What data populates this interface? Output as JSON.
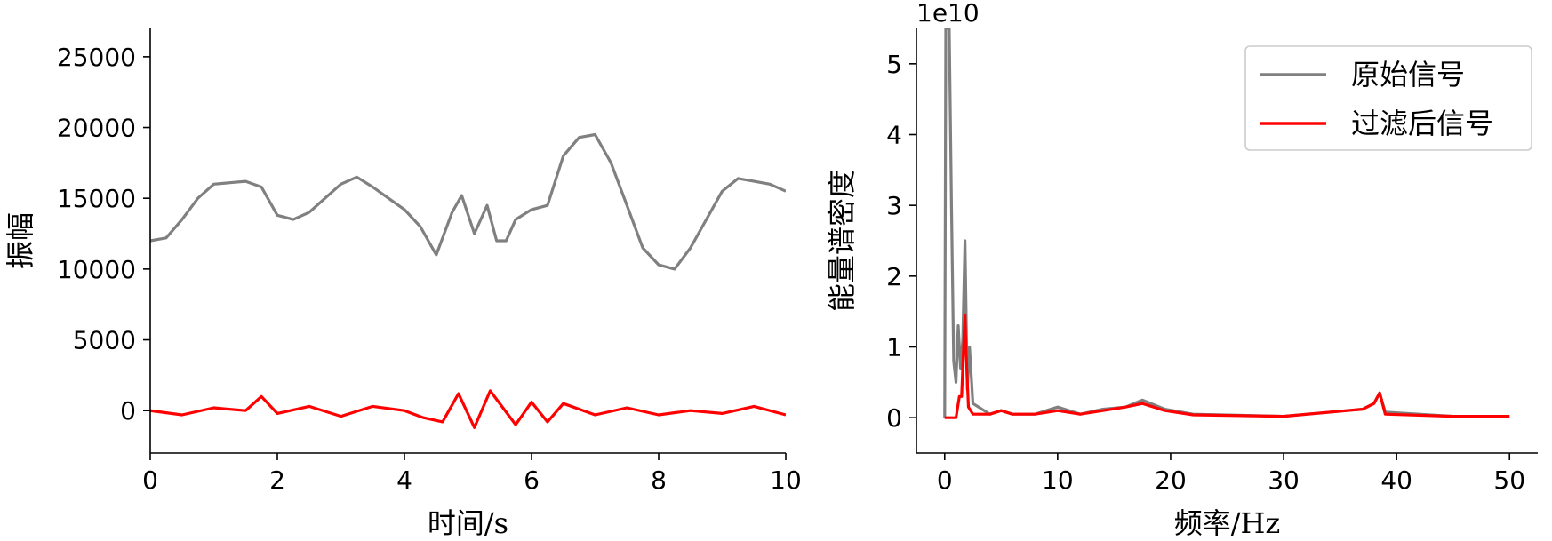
{
  "chart_data": [
    {
      "type": "line",
      "xlabel": "时间/s",
      "ylabel": "振幅",
      "xlim": [
        0,
        10
      ],
      "ylim": [
        -3000,
        27000
      ],
      "xticks": [
        0,
        2,
        4,
        6,
        8,
        10
      ],
      "yticks": [
        0,
        5000,
        10000,
        15000,
        20000,
        25000
      ],
      "grid": false,
      "series": [
        {
          "color": "#808080",
          "x": [
            0,
            0.25,
            0.5,
            0.75,
            1.0,
            1.25,
            1.5,
            1.75,
            2.0,
            2.25,
            2.5,
            2.75,
            3.0,
            3.25,
            3.5,
            3.75,
            4.0,
            4.25,
            4.5,
            4.75,
            4.9,
            5.1,
            5.3,
            5.45,
            5.6,
            5.75,
            6.0,
            6.25,
            6.5,
            6.75,
            7.0,
            7.25,
            7.5,
            7.75,
            8.0,
            8.25,
            8.5,
            8.75,
            9.0,
            9.25,
            9.5,
            9.75,
            10.0
          ],
          "values": [
            12000,
            12200,
            13500,
            15000,
            16000,
            16100,
            16200,
            15800,
            13800,
            13500,
            14000,
            15000,
            16000,
            16500,
            15800,
            15000,
            14200,
            13000,
            11000,
            14000,
            15200,
            12500,
            14500,
            12000,
            12000,
            13500,
            14200,
            14500,
            18000,
            19300,
            19500,
            17500,
            14500,
            11500,
            10300,
            10000,
            11500,
            13500,
            15500,
            16400,
            16200,
            16000,
            15500
          ]
        },
        {
          "color": "#ff0000",
          "x": [
            0,
            0.5,
            1.0,
            1.5,
            1.75,
            2.0,
            2.5,
            3.0,
            3.5,
            4.0,
            4.3,
            4.6,
            4.85,
            5.1,
            5.35,
            5.55,
            5.75,
            6.0,
            6.25,
            6.5,
            7.0,
            7.5,
            8.0,
            8.5,
            9.0,
            9.5,
            10.0
          ],
          "values": [
            0,
            -300,
            200,
            0,
            1000,
            -200,
            300,
            -400,
            300,
            0,
            -500,
            -800,
            1200,
            -1200,
            1400,
            200,
            -1000,
            600,
            -800,
            500,
            -300,
            200,
            -300,
            0,
            -200,
            300,
            -300
          ]
        }
      ]
    },
    {
      "type": "line",
      "xlabel": "频率/Hz",
      "ylabel": "能量谱密度",
      "axis_offset_text": "1e10",
      "xlim": [
        -2.5,
        52.5
      ],
      "ylim": [
        -0.5,
        5.5
      ],
      "xticks": [
        0,
        10,
        20,
        30,
        40,
        50
      ],
      "yticks": [
        0,
        1,
        2,
        3,
        4,
        5
      ],
      "grid": false,
      "legend_position": "top-right",
      "series": [
        {
          "name": "原始信号",
          "color": "#808080",
          "x": [
            0,
            0.1,
            0.2,
            0.4,
            0.6,
            0.8,
            1.0,
            1.2,
            1.4,
            1.6,
            1.8,
            2.0,
            2.2,
            2.5,
            3.0,
            4.0,
            5.0,
            6.0,
            8.0,
            10.0,
            12.0,
            14.0,
            16.0,
            17.5,
            19.5,
            22.0,
            30.0,
            37.0,
            38.0,
            38.5,
            39.0,
            45.0,
            50.0
          ],
          "values": [
            0.0,
            5.5,
            5.5,
            5.5,
            3.0,
            0.8,
            0.5,
            1.3,
            0.7,
            1.1,
            2.5,
            0.4,
            1.0,
            0.2,
            0.15,
            0.05,
            0.1,
            0.05,
            0.05,
            0.15,
            0.05,
            0.12,
            0.15,
            0.25,
            0.12,
            0.05,
            0.02,
            0.12,
            0.2,
            0.35,
            0.08,
            0.02,
            0.02
          ]
        },
        {
          "name": "过滤后信号",
          "color": "#ff0000",
          "x": [
            0,
            1.0,
            1.3,
            1.5,
            1.7,
            1.8,
            1.9,
            2.1,
            2.5,
            3.0,
            4.0,
            5.0,
            6.0,
            8.0,
            10.0,
            12.0,
            14.0,
            16.0,
            17.5,
            19.5,
            22.0,
            30.0,
            37.0,
            38.0,
            38.5,
            39.0,
            45.0,
            50.0
          ],
          "values": [
            0.0,
            0.0,
            0.3,
            0.3,
            1.1,
            1.45,
            0.9,
            0.15,
            0.05,
            0.05,
            0.05,
            0.1,
            0.05,
            0.05,
            0.1,
            0.05,
            0.1,
            0.15,
            0.2,
            0.1,
            0.04,
            0.02,
            0.12,
            0.2,
            0.35,
            0.05,
            0.02,
            0.02
          ]
        }
      ]
    }
  ]
}
